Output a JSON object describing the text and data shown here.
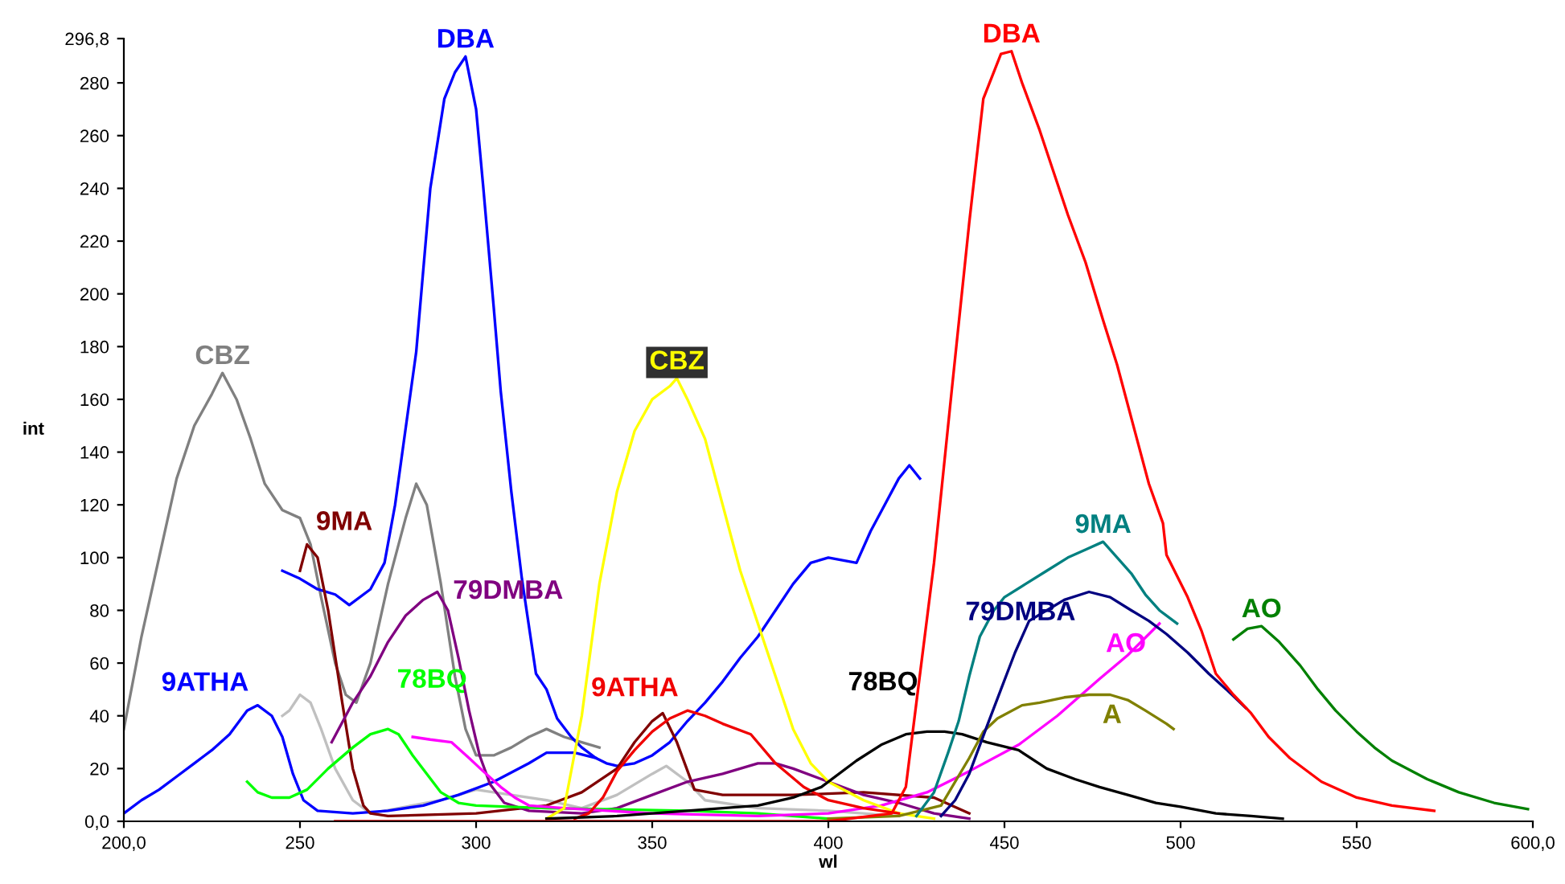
{
  "chart_data": {
    "type": "line",
    "xlabel": "wl",
    "ylabel": "int",
    "xlim": [
      200,
      600
    ],
    "ylim": [
      0,
      296.8
    ],
    "xticks": [
      {
        "value": 200,
        "label": "200,0"
      },
      250,
      300,
      350,
      400,
      450,
      500,
      550,
      {
        "value": 600,
        "label": "600,0"
      }
    ],
    "yticks": [
      {
        "value": 0,
        "label": "0,0"
      },
      20,
      40,
      60,
      80,
      100,
      120,
      140,
      160,
      180,
      200,
      220,
      240,
      260,
      280,
      {
        "value": 296.8,
        "label": "296,8"
      }
    ],
    "grid": false,
    "legend": false,
    "marker": "none",
    "line_style": "solid",
    "series": [
      {
        "name": "CBZ",
        "color": "#808080",
        "x": [
          200,
          205,
          210,
          215,
          220,
          225,
          228,
          232,
          236,
          240,
          245,
          250,
          253,
          256,
          260,
          263,
          266,
          270,
          275,
          280,
          283,
          286,
          290,
          294,
          297,
          300,
          305,
          310,
          315,
          320,
          325,
          330,
          335
        ],
        "values": [
          35,
          70,
          100,
          130,
          150,
          162,
          170,
          160,
          145,
          128,
          118,
          115,
          105,
          85,
          60,
          48,
          45,
          60,
          90,
          115,
          128,
          120,
          90,
          55,
          35,
          25,
          25,
          28,
          32,
          35,
          32,
          30,
          28
        ]
      },
      {
        "color": "#c0c0c0",
        "x": [
          245,
          247,
          250,
          253,
          256,
          260,
          265,
          270,
          290,
          300,
          310,
          320,
          330,
          340,
          350,
          354,
          360,
          365,
          380,
          400,
          420
        ],
        "values": [
          40,
          42,
          48,
          45,
          35,
          20,
          8,
          3,
          8,
          12,
          10,
          8,
          5,
          10,
          18,
          21,
          15,
          8,
          5,
          4,
          2
        ]
      },
      {
        "name": "DBA",
        "color": "#0000ff",
        "x": [
          245,
          250,
          255,
          260,
          264,
          270,
          274,
          277,
          283,
          287,
          291,
          294,
          297,
          300,
          302,
          305,
          307,
          310,
          313,
          317,
          320,
          323,
          327,
          330,
          334,
          337,
          340,
          345,
          350,
          355,
          360,
          365,
          370,
          375,
          380,
          385,
          390,
          395,
          400,
          404,
          408,
          412,
          416,
          420,
          423,
          426
        ],
        "values": [
          95,
          92,
          88,
          86,
          82,
          88,
          98,
          120,
          178,
          240,
          274,
          284,
          290,
          270,
          241,
          195,
          163,
          125,
          92,
          56,
          50,
          39,
          32,
          28,
          24,
          22,
          21,
          22,
          25,
          30,
          38,
          45,
          53,
          62,
          70,
          80,
          90,
          98,
          100,
          99,
          98,
          110,
          120,
          130,
          135,
          130
        ]
      },
      {
        "name": "9ATHA",
        "color": "#0000ff",
        "x": [
          200,
          205,
          210,
          215,
          220,
          225,
          230,
          235,
          238,
          242,
          245,
          248,
          251,
          255,
          265,
          275,
          285,
          295,
          305,
          315,
          320,
          328,
          334
        ],
        "values": [
          3,
          8,
          12,
          17,
          22,
          27,
          33,
          42,
          44,
          40,
          32,
          18,
          8,
          4,
          3,
          4,
          6,
          10,
          15,
          22,
          26,
          26,
          24
        ]
      },
      {
        "name": "9MA",
        "color": "#800000",
        "x": [
          250,
          252,
          255,
          258,
          262,
          265,
          268,
          270,
          275,
          300,
          320,
          330,
          340,
          345,
          350,
          353,
          357,
          362,
          370,
          390,
          410,
          430,
          440
        ],
        "values": [
          95,
          105,
          100,
          80,
          45,
          20,
          6,
          3,
          2,
          3,
          6,
          11,
          20,
          30,
          38,
          41,
          30,
          12,
          10,
          10,
          11,
          9,
          3
        ]
      },
      {
        "name": "79DMBA",
        "color": "#800080",
        "x": [
          259,
          265,
          270,
          275,
          280,
          285,
          289,
          292,
          295,
          298,
          301,
          304,
          308,
          315,
          330,
          340,
          350,
          360,
          370,
          380,
          385,
          390,
          400,
          410,
          420,
          430,
          440
        ],
        "values": [
          30,
          45,
          55,
          68,
          78,
          84,
          87,
          80,
          62,
          42,
          25,
          14,
          7,
          4,
          3,
          5,
          10,
          15,
          18,
          22,
          22,
          20,
          15,
          10,
          7,
          3,
          1
        ]
      },
      {
        "name": "78BQ",
        "color": "#00ff00",
        "x": [
          235,
          238,
          242,
          247,
          252,
          258,
          265,
          270,
          275,
          278,
          282,
          286,
          290,
          295,
          300,
          320,
          360,
          380,
          400
        ],
        "values": [
          15,
          11,
          9,
          9,
          12,
          20,
          28,
          33,
          35,
          33,
          25,
          18,
          11,
          7,
          6,
          5,
          4,
          3,
          1
        ]
      },
      {
        "name": "AO",
        "color": "#ff00ff",
        "x": [
          282,
          287,
          293,
          298,
          302,
          307,
          311,
          315,
          325,
          350,
          380,
          400,
          415,
          428,
          440,
          454,
          465,
          477,
          485,
          494
        ],
        "values": [
          32,
          31,
          30,
          24,
          19,
          13,
          9,
          6,
          5,
          3,
          2,
          3,
          6,
          11,
          19,
          29,
          40,
          54,
          63,
          75
        ]
      },
      {
        "name": "CBZ",
        "color": "#ffff00",
        "x": [
          320,
          325,
          330,
          335,
          340,
          345,
          350,
          355,
          357,
          360,
          365,
          370,
          375,
          380,
          385,
          390,
          395,
          400,
          410,
          420,
          430
        ],
        "values": [
          1,
          5,
          40,
          90,
          125,
          148,
          160,
          165,
          168,
          160,
          145,
          120,
          95,
          75,
          55,
          35,
          22,
          15,
          8,
          3,
          1
        ]
      },
      {
        "name": "9ATHA",
        "color": "#f00000",
        "x": [
          328,
          332,
          336,
          340,
          345,
          350,
          355,
          360,
          365,
          370,
          378,
          385,
          393,
          400,
          410,
          420
        ],
        "values": [
          1,
          3,
          9,
          19,
          27,
          34,
          39,
          42,
          40,
          37,
          33,
          22,
          13,
          8,
          5,
          3
        ]
      },
      {
        "name": "78BQ",
        "color": "#000000",
        "x": [
          320,
          340,
          360,
          380,
          390,
          398,
          408,
          415,
          422,
          428,
          433,
          438,
          445,
          454,
          462,
          470,
          477,
          485,
          493,
          500,
          510,
          520,
          529
        ],
        "values": [
          1,
          2,
          4,
          6,
          9,
          13,
          23,
          29,
          33,
          34,
          34,
          33,
          30,
          27,
          20,
          16,
          13,
          10,
          7,
          5.5,
          3,
          2,
          1
        ]
      },
      {
        "name": "A",
        "color": "#808000",
        "x": [
          400,
          420,
          432,
          440,
          444,
          448,
          455,
          460,
          467,
          474,
          480,
          485,
          490,
          496,
          498
        ],
        "values": [
          1,
          2,
          6,
          24,
          34,
          39,
          44,
          45,
          47,
          48,
          48,
          46,
          42,
          37,
          35
        ]
      },
      {
        "name": "9MA",
        "color": "#008080",
        "x": [
          425,
          430,
          434,
          437,
          440,
          443,
          447,
          450,
          456,
          462,
          468,
          473,
          478,
          482,
          486,
          490,
          494,
          499
        ],
        "values": [
          2,
          11,
          26,
          38,
          55,
          70,
          80,
          85,
          90,
          95,
          100,
          103,
          106,
          100,
          94,
          86,
          80,
          75
        ]
      },
      {
        "name": "79DMBA",
        "color": "#000080",
        "x": [
          432,
          436,
          440,
          445,
          449,
          453,
          457,
          462,
          467,
          474,
          480,
          486,
          491,
          496,
          502,
          508,
          513,
          518.5
        ],
        "values": [
          2,
          8,
          18,
          36,
          50,
          64,
          76,
          80,
          84,
          87,
          85,
          80,
          76,
          71,
          64,
          56,
          50,
          43
        ]
      },
      {
        "name": "DBA",
        "color": "#ff0000",
        "x": [
          260,
          300,
          350,
          400,
          418,
          422,
          425,
          430,
          435,
          440,
          444,
          449,
          452,
          455,
          460,
          464,
          468,
          473,
          478,
          482,
          487,
          491,
          495,
          496,
          502,
          506,
          510,
          515,
          520,
          525,
          531,
          540,
          550,
          560,
          572
        ],
        "values": [
          0,
          0,
          0,
          0,
          3,
          13,
          45,
          98,
          163,
          227,
          274,
          291,
          292,
          280,
          262,
          246,
          230,
          212,
          190,
          173,
          148,
          128,
          113,
          101,
          85,
          72,
          56,
          48,
          41,
          32,
          24,
          15,
          9,
          6,
          4
        ]
      },
      {
        "name": "AO",
        "color": "#008000",
        "x": [
          515,
          519,
          523,
          528,
          534,
          539,
          544,
          550,
          555,
          560,
          570,
          579,
          589,
          598.6
        ],
        "values": [
          69,
          73,
          74,
          68,
          59,
          50,
          42,
          34,
          28,
          23,
          16,
          11,
          7,
          4.6
        ]
      }
    ]
  }
}
